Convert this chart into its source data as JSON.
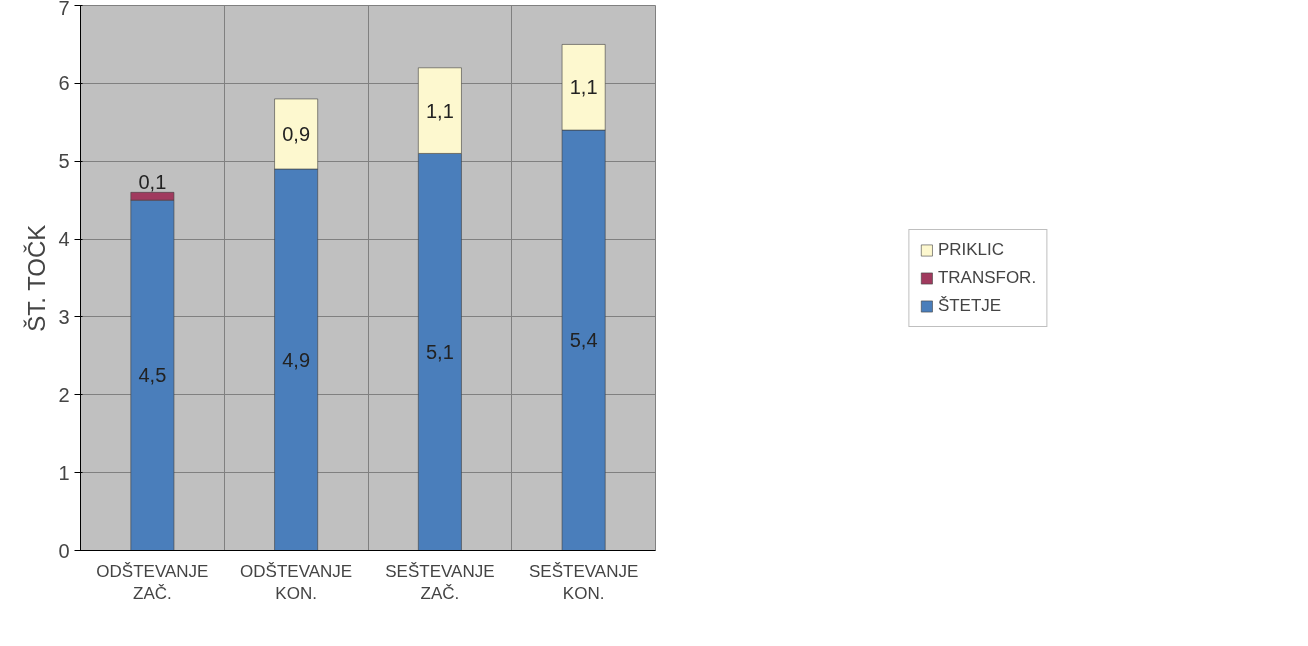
{
  "chart_data": {
    "type": "bar",
    "stacked": true,
    "ylabel": "ŠT. TOČK",
    "categories": [
      "ODŠTEVANJE\nZAČ.",
      "ODŠTEVANJE\nKON.",
      "SEŠTEVANJE\nZAČ.",
      "SEŠTEVANJE\nKON."
    ],
    "series": [
      {
        "name": "ŠTETJE",
        "color": "#4a7ebb",
        "values": [
          4.5,
          4.9,
          5.1,
          5.4
        ],
        "value_labels": [
          "4,5",
          "4,9",
          "5,1",
          "5,4"
        ]
      },
      {
        "name": "TRANSFOR.",
        "color": "#a03a5e",
        "values": [
          0.1,
          null,
          null,
          null
        ],
        "value_labels": [
          "0,1",
          null,
          null,
          null
        ]
      },
      {
        "name": "PRIKLIC",
        "color": "#fdf8cf",
        "values": [
          null,
          0.9,
          1.1,
          1.1
        ],
        "value_labels": [
          null,
          "0,9",
          "1,1",
          "1,1"
        ]
      }
    ],
    "ylim": [
      0,
      7
    ],
    "yticks": [
      0,
      1,
      2,
      3,
      4,
      5,
      6,
      7
    ],
    "grid": true,
    "legend": "right"
  }
}
